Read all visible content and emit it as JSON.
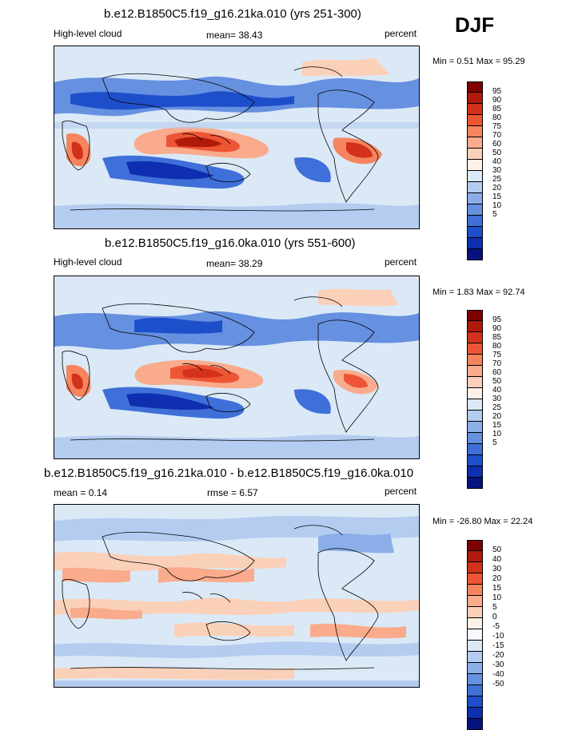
{
  "season": "DJF",
  "panels": [
    {
      "id": "top",
      "title": "b.e12.B1850C5.f19_g16.21ka.010 (yrs 251-300)",
      "left_label": "High-level cloud",
      "center_label": "mean=  38.43",
      "right_label": "percent",
      "minmax": "Min =   0.51 Max =  95.29",
      "colorbar": {
        "colors": [
          "#7f0000",
          "#b01a0a",
          "#d3311b",
          "#ee5535",
          "#f6845f",
          "#f9ab8c",
          "#fbd0b9",
          "#fdf0e6",
          "#dbe9f6",
          "#b4ccf0",
          "#8caee8",
          "#6690e0",
          "#3f6fd8",
          "#1e4fcb",
          "#0d2fb0",
          "#06137e"
        ],
        "labels": [
          "95",
          "90",
          "85",
          "80",
          "75",
          "70",
          "60",
          "50",
          "40",
          "30",
          "25",
          "20",
          "15",
          "10",
          "5"
        ]
      }
    },
    {
      "id": "middle",
      "title": "b.e12.B1850C5.f19_g16.0ka.010 (yrs 551-600)",
      "left_label": "High-level cloud",
      "center_label": "mean=  38.29",
      "right_label": "percent",
      "minmax": "Min =   1.83 Max =  92.74",
      "colorbar": {
        "colors": [
          "#7f0000",
          "#b01a0a",
          "#d3311b",
          "#ee5535",
          "#f6845f",
          "#f9ab8c",
          "#fbd0b9",
          "#fdf0e6",
          "#dbe9f6",
          "#b4ccf0",
          "#8caee8",
          "#6690e0",
          "#3f6fd8",
          "#1e4fcb",
          "#0d2fb0",
          "#06137e"
        ],
        "labels": [
          "95",
          "90",
          "85",
          "80",
          "75",
          "70",
          "60",
          "50",
          "40",
          "30",
          "25",
          "20",
          "15",
          "10",
          "5"
        ]
      }
    },
    {
      "id": "bottom",
      "title": "b.e12.B1850C5.f19_g16.21ka.010 - b.e12.B1850C5.f19_g16.0ka.010",
      "left_label": "mean =   0.14",
      "center_label": "rmse =   6.57",
      "right_label": "percent",
      "minmax": "Min = -26.80 Max =  22.24",
      "colorbar": {
        "colors": [
          "#7f0000",
          "#b01a0a",
          "#d3311b",
          "#ee5535",
          "#f6845f",
          "#f9ab8c",
          "#fbd0b9",
          "#fdf0e6",
          "#f5f8fd",
          "#dbe9f6",
          "#b4ccf0",
          "#8caee8",
          "#6690e0",
          "#3f6fd8",
          "#1e4fcb",
          "#0d2fb0",
          "#06137e"
        ],
        "labels": [
          "50",
          "40",
          "30",
          "20",
          "15",
          "10",
          "5",
          "0",
          "-5",
          "-10",
          "-15",
          "-20",
          "-30",
          "-40",
          "-50"
        ]
      }
    }
  ]
}
